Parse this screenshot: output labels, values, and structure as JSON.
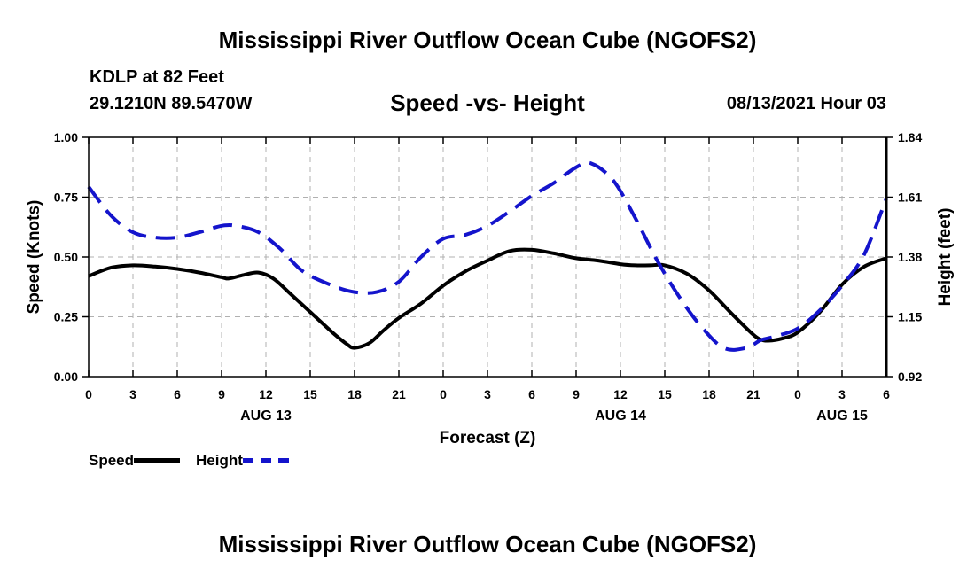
{
  "header": {
    "title": "Mississippi River Outflow Ocean Cube (NGOFS2)",
    "station": "KDLP at 82 Feet",
    "coordinates": "29.1210N  89.5470W",
    "subtitle": "Speed -vs- Height",
    "datetime": "08/13/2021 Hour 03"
  },
  "footer": {
    "title": "Mississippi River Outflow Ocean Cube (NGOFS2)"
  },
  "colors": {
    "speed": "#000000",
    "height": "#1414cc",
    "axis": "#000000",
    "grid": "#b0b0b0"
  },
  "chart_data": {
    "type": "line",
    "title": "Speed -vs- Height",
    "xlabel": "Forecast (Z)",
    "ylabel": "Speed (Knots)",
    "y2label": "Height (feet)",
    "grid": true,
    "legend_position": "bottom-left",
    "xlim": [
      0,
      54
    ],
    "ylim": [
      0,
      1
    ],
    "y2lim": [
      0.92,
      1.84
    ],
    "x_ticks": [
      0,
      3,
      6,
      9,
      12,
      15,
      18,
      21,
      24,
      27,
      30,
      33,
      36,
      39,
      42,
      45,
      48,
      51,
      54
    ],
    "x_tick_labels": [
      "0",
      "3",
      "6",
      "9",
      "12",
      "15",
      "18",
      "21",
      "0",
      "3",
      "6",
      "9",
      "12",
      "15",
      "18",
      "21",
      "0",
      "3",
      "6"
    ],
    "y_ticks": [
      0,
      0.25,
      0.5,
      0.75,
      1.0
    ],
    "y_tick_labels": [
      "0.00",
      "0.25",
      "0.50",
      "0.75",
      "1.00"
    ],
    "y2_ticks": [
      0.92,
      1.15,
      1.38,
      1.61,
      1.84
    ],
    "y2_tick_labels": [
      "0.92",
      "1.15",
      "1.38",
      "1.61",
      "1.84"
    ],
    "date_labels": [
      {
        "x": 12,
        "label": "AUG 13"
      },
      {
        "x": 36,
        "label": "AUG 14"
      },
      {
        "x": 51,
        "label": "AUG 15"
      }
    ],
    "series": [
      {
        "name": "Speed",
        "axis": "left",
        "style": "solid",
        "x": [
          0,
          1.5,
          3,
          4.5,
          6,
          7.5,
          9,
          9.5,
          10.5,
          11.5,
          12.5,
          13.5,
          15,
          16.5,
          17.5,
          18,
          19,
          20,
          21,
          22.5,
          24,
          25.5,
          27,
          28.5,
          30,
          31.5,
          33,
          34.5,
          36,
          37,
          38,
          39,
          40.5,
          42,
          43.5,
          45,
          45.5,
          46,
          47,
          48,
          49.5,
          51,
          52.5,
          54
        ],
        "values": [
          0.42,
          0.455,
          0.465,
          0.46,
          0.45,
          0.435,
          0.415,
          0.41,
          0.425,
          0.435,
          0.41,
          0.355,
          0.27,
          0.185,
          0.135,
          0.12,
          0.14,
          0.195,
          0.245,
          0.305,
          0.38,
          0.44,
          0.485,
          0.525,
          0.53,
          0.515,
          0.495,
          0.485,
          0.47,
          0.465,
          0.465,
          0.465,
          0.43,
          0.36,
          0.265,
          0.175,
          0.155,
          0.15,
          0.16,
          0.185,
          0.27,
          0.385,
          0.46,
          0.495
        ]
      },
      {
        "name": "Height",
        "axis": "right",
        "style": "dashed",
        "x": [
          0,
          1.5,
          3,
          4.5,
          6,
          7.5,
          9,
          10,
          11.5,
          13,
          14.5,
          16.5,
          18,
          19.5,
          21,
          22.5,
          24,
          25.5,
          27,
          28.5,
          30,
          31.5,
          33,
          34,
          35.5,
          37,
          38.5,
          40,
          41.5,
          43,
          44.5,
          45.5,
          46.5,
          48,
          49.5,
          51,
          52.5,
          54
        ],
        "values": [
          1.65,
          1.54,
          1.475,
          1.455,
          1.455,
          1.475,
          1.5,
          1.5,
          1.475,
          1.41,
          1.325,
          1.27,
          1.245,
          1.245,
          1.285,
          1.38,
          1.45,
          1.465,
          1.5,
          1.555,
          1.615,
          1.665,
          1.725,
          1.74,
          1.675,
          1.53,
          1.365,
          1.225,
          1.11,
          1.03,
          1.03,
          1.06,
          1.075,
          1.105,
          1.175,
          1.27,
          1.39,
          1.605
        ]
      }
    ]
  }
}
